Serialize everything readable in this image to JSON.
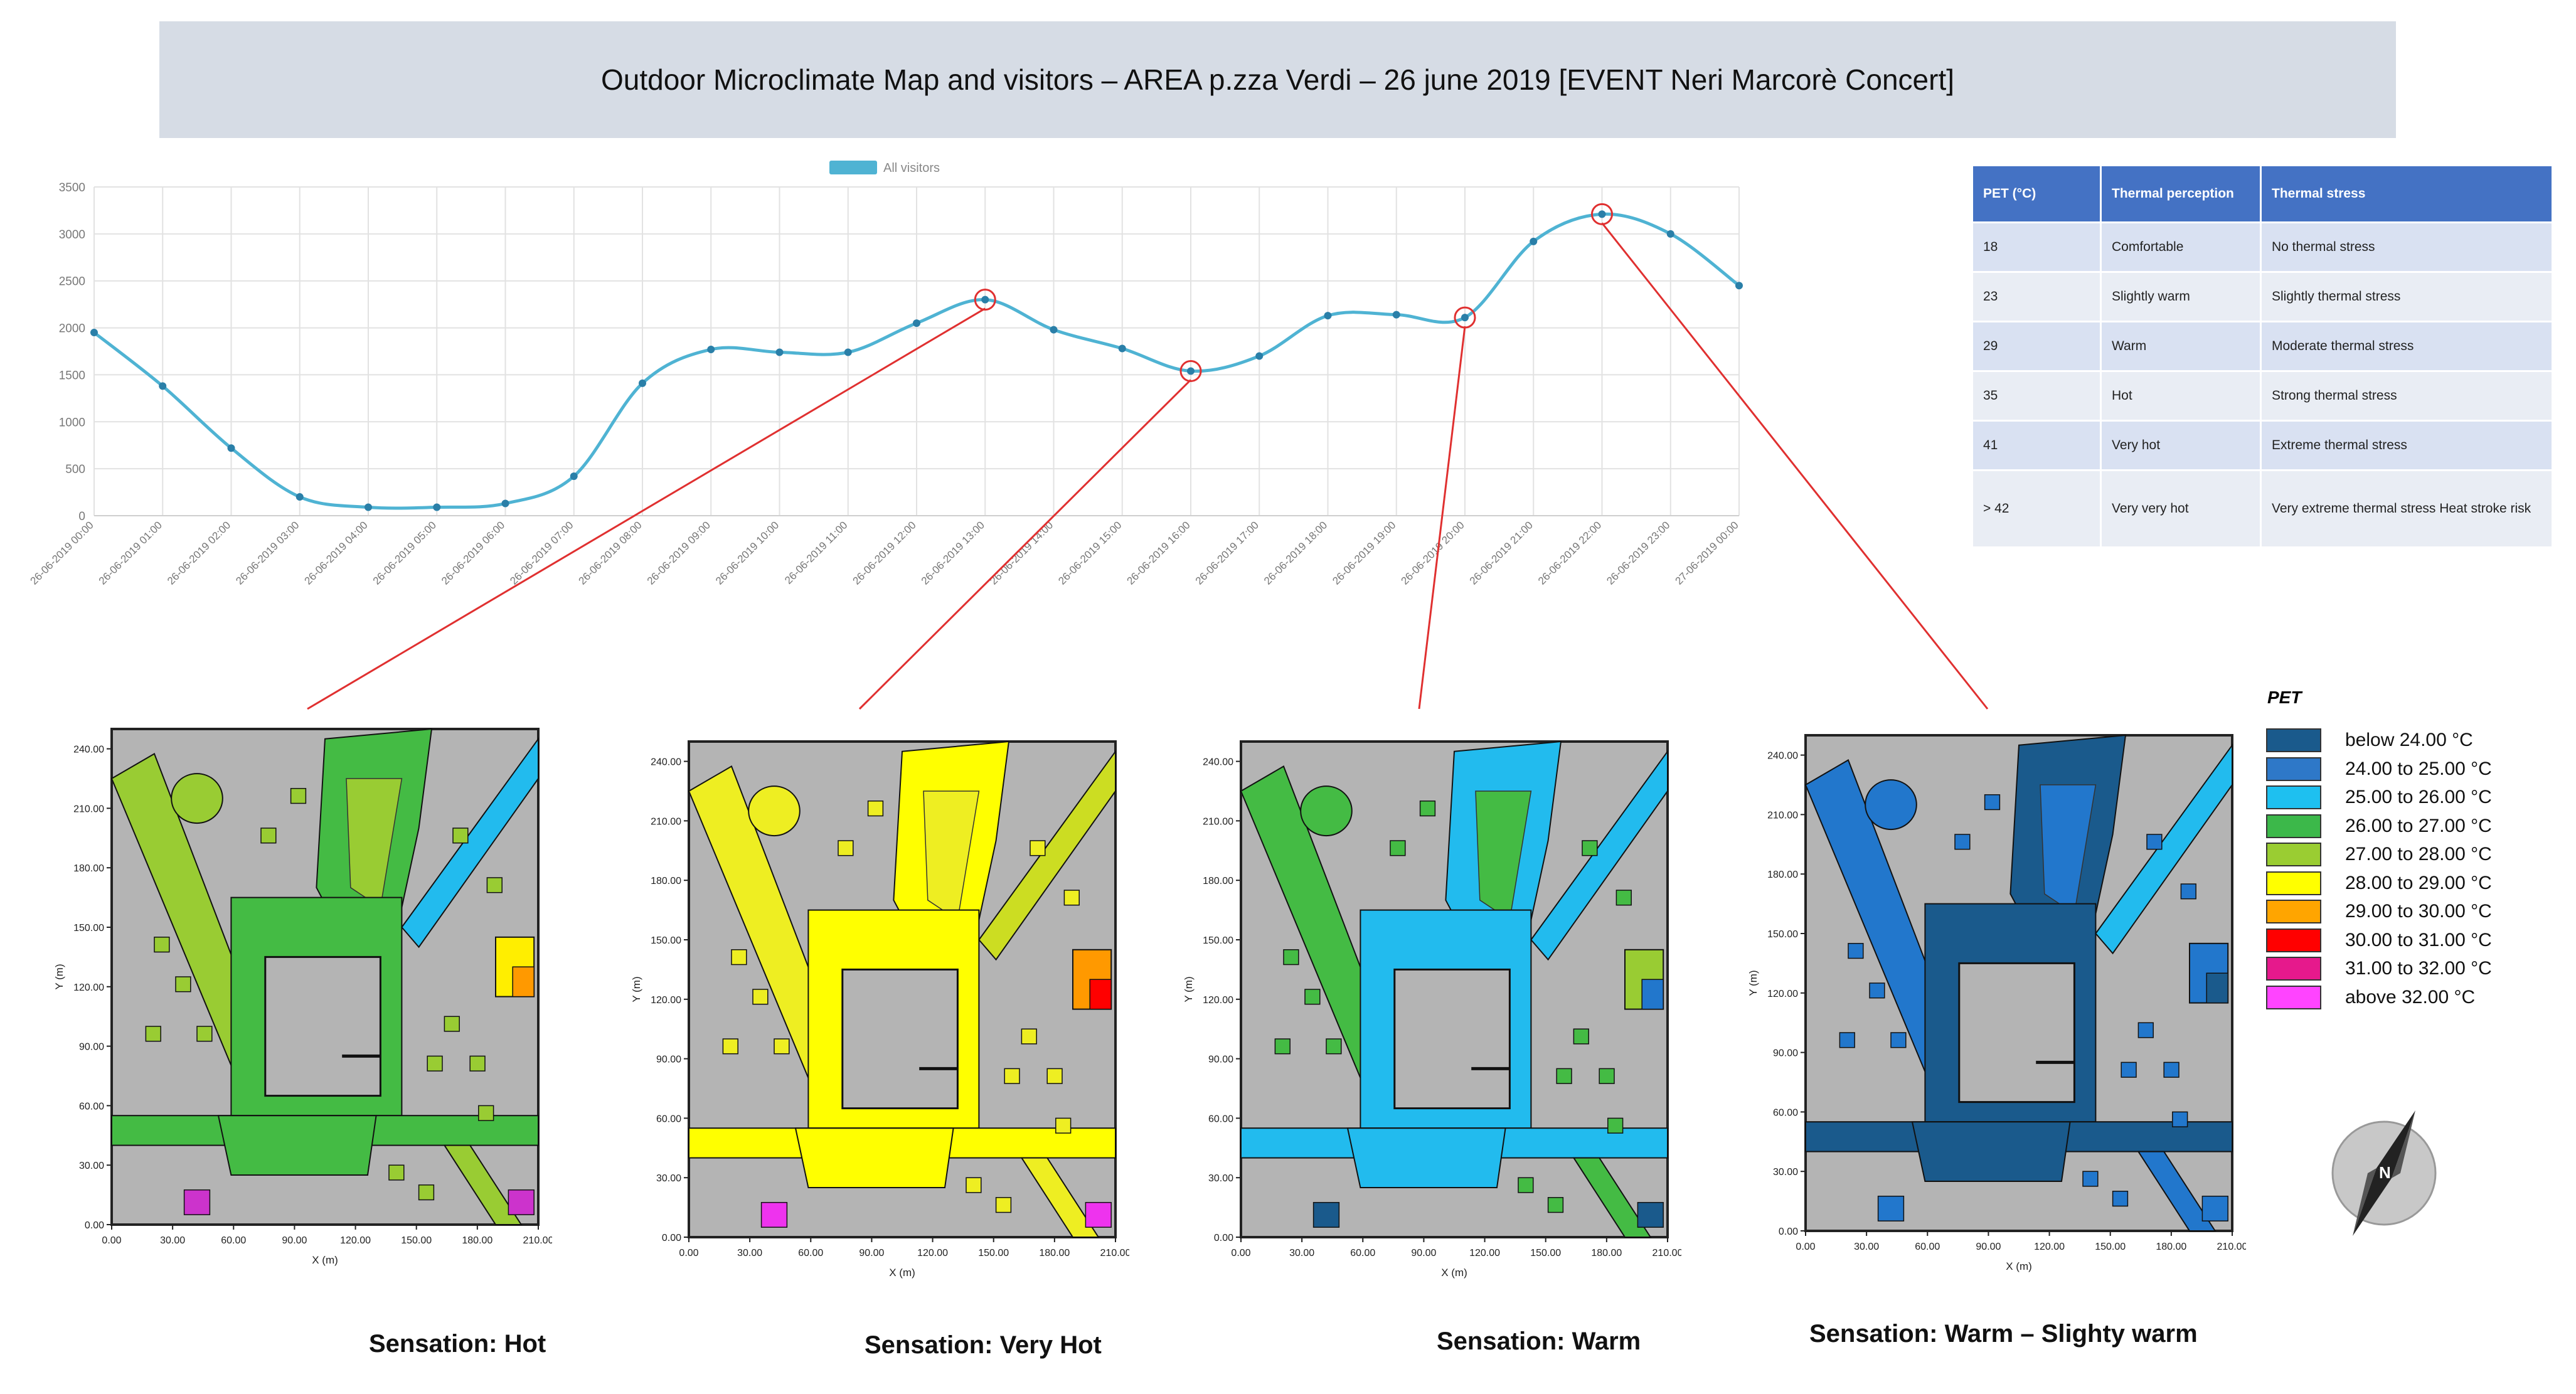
{
  "title": "Outdoor Microclimate Map and visitors – AREA p.zza Verdi – 26 june 2019 [EVENT Neri Marcorè Concert]",
  "chart_data": {
    "type": "line",
    "legend": "All visitors",
    "legend_position": "top",
    "series": [
      {
        "name": "All visitors",
        "color": "#4fb3d3",
        "values": [
          1950,
          1380,
          720,
          200,
          90,
          90,
          130,
          420,
          1410,
          1770,
          1740,
          1740,
          2050,
          2300,
          1980,
          1780,
          1540,
          1700,
          2130,
          2140,
          2110,
          2920,
          3210,
          3000,
          2450
        ]
      }
    ],
    "categories": [
      "26-06-2019 00:00",
      "26-06-2019 01:00",
      "26-06-2019 02:00",
      "26-06-2019 03:00",
      "26-06-2019 04:00",
      "26-06-2019 05:00",
      "26-06-2019 06:00",
      "26-06-2019 07:00",
      "26-06-2019 08:00",
      "26-06-2019 09:00",
      "26-06-2019 10:00",
      "26-06-2019 11:00",
      "26-06-2019 12:00",
      "26-06-2019 13:00",
      "26-06-2019 14:00",
      "26-06-2019 15:00",
      "26-06-2019 16:00",
      "26-06-2019 17:00",
      "26-06-2019 18:00",
      "26-06-2019 19:00",
      "26-06-2019 20:00",
      "26-06-2019 21:00",
      "26-06-2019 22:00",
      "26-06-2019 23:00",
      "27-06-2019 00:00"
    ],
    "y_ticks": [
      0,
      500,
      1000,
      1500,
      2000,
      2500,
      3000,
      3500
    ],
    "ylim": [
      0,
      3500
    ],
    "grid": true,
    "highlighted_indices": [
      13,
      16,
      20,
      22
    ]
  },
  "pet_table": {
    "headers": [
      "PET (°C)",
      "Thermal perception",
      "Thermal stress"
    ],
    "rows": [
      [
        "18",
        "Comfortable",
        "No thermal stress"
      ],
      [
        "23",
        "Slightly warm",
        "Slightly thermal stress"
      ],
      [
        "29",
        "Warm",
        "Moderate thermal stress"
      ],
      [
        "35",
        "Hot",
        "Strong thermal stress"
      ],
      [
        "41",
        "Very hot",
        "Extreme thermal stress"
      ],
      [
        "> 42",
        "Very very hot",
        "Very extreme thermal stress Heat stroke risk"
      ]
    ]
  },
  "maps": {
    "x_label": "X (m)",
    "y_label": "Y (m)",
    "x_ticks": [
      "0.00",
      "30.00",
      "60.00",
      "90.00",
      "120.00",
      "150.00",
      "180.00",
      "210.00"
    ],
    "y_ticks": [
      "0.00",
      "30.00",
      "60.00",
      "90.00",
      "120.00",
      "150.00",
      "180.00",
      "210.00",
      "240.00"
    ],
    "panels": [
      {
        "caption": "Sensation: Hot",
        "main_color": "#44bb44",
        "accent_color": "#99cc33",
        "hot_color": "#ffee00",
        "hot2_color": "#ff9900",
        "hot3_color": "#cc33cc",
        "water_color": "#22bbee"
      },
      {
        "caption": "Sensation: Very Hot",
        "main_color": "#ffff00",
        "accent_color": "#eeee22",
        "hot_color": "#ff9900",
        "hot2_color": "#ff0000",
        "hot3_color": "#ee33ee",
        "water_color": "#ccdd22"
      },
      {
        "caption": "Sensation: Warm",
        "main_color": "#22bbee",
        "accent_color": "#44bb44",
        "hot_color": "#99cc33",
        "hot2_color": "#2277cc",
        "hot3_color": "#1a5a8c",
        "water_color": "#22bbee"
      },
      {
        "caption": "Sensation: Warm – Slighty warm",
        "main_color": "#1a5a8c",
        "accent_color": "#2277cc",
        "hot_color": "#2277cc",
        "hot2_color": "#1a5a8c",
        "hot3_color": "#2277cc",
        "water_color": "#22bbee"
      }
    ]
  },
  "legend": {
    "title": "PET",
    "items": [
      {
        "label": "below 24.00 °C",
        "color": "#1a5a8c"
      },
      {
        "label": "24.00 to 25.00 °C",
        "color": "#2e78c8"
      },
      {
        "label": "25.00 to 26.00 °C",
        "color": "#1ec0f0"
      },
      {
        "label": "26.00 to 27.00 °C",
        "color": "#3cb84a"
      },
      {
        "label": "27.00 to 28.00 °C",
        "color": "#9acd32"
      },
      {
        "label": "28.00 to 29.00 °C",
        "color": "#ffff00"
      },
      {
        "label": "29.00 to 30.00 °C",
        "color": "#ffa500"
      },
      {
        "label": "30.00 to 31.00 °C",
        "color": "#ff0000"
      },
      {
        "label": "31.00 to 32.00 °C",
        "color": "#e6198c"
      },
      {
        "label": "above 32.00 °C",
        "color": "#ff44ff"
      }
    ]
  },
  "compass": {
    "label": "N"
  }
}
